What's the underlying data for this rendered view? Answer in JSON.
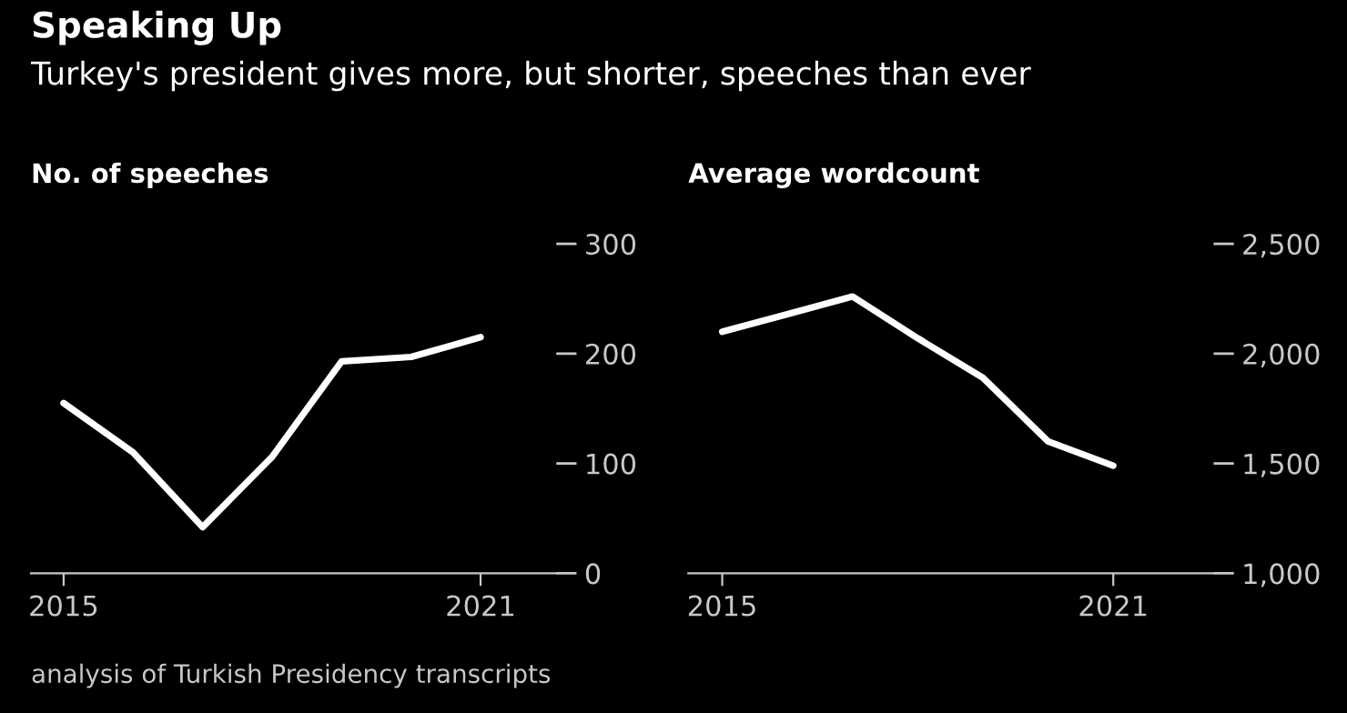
{
  "chart_data": [
    {
      "type": "line",
      "title": "Speaking Up",
      "subtitle": "Turkey's president gives more, but shorter, speeches than ever",
      "ylabel": "No. of speeches",
      "x": [
        2015,
        2016,
        2017,
        2018,
        2019,
        2020,
        2021
      ],
      "series": [
        {
          "color": "#ffffff",
          "values": [
            155,
            110,
            42,
            106,
            193,
            197,
            215
          ]
        }
      ],
      "xlim": [
        2014.53,
        2022.09
      ],
      "xticks": [
        2015,
        2021
      ],
      "ylim": [
        0,
        300
      ],
      "yticks": [
        0,
        100,
        200,
        300
      ],
      "grid": false,
      "legend": false,
      "marker": "none",
      "line_style": "solid",
      "annotations": [
        "analysis of Turkish Presidency transcripts"
      ]
    },
    {
      "type": "line",
      "ylabel": "Average wordcount",
      "x": [
        2015,
        2016,
        2017,
        2018,
        2019,
        2020,
        2021
      ],
      "series": [
        {
          "color": "#ffffff",
          "values": [
            2100,
            2180,
            2260,
            2070,
            1890,
            1600,
            1490
          ]
        }
      ],
      "xlim": [
        2014.48,
        2022.54
      ],
      "xticks": [
        2015,
        2021
      ],
      "ylim": [
        1000,
        2500
      ],
      "yticks": [
        {
          "value": 1000,
          "label": "1,000"
        },
        {
          "value": 1500,
          "label": "1,500"
        },
        {
          "value": 2000,
          "label": "2,000"
        },
        {
          "value": 2500,
          "label": "2,500"
        }
      ],
      "grid": false,
      "legend": false,
      "marker": "none",
      "line_style": "solid"
    }
  ]
}
